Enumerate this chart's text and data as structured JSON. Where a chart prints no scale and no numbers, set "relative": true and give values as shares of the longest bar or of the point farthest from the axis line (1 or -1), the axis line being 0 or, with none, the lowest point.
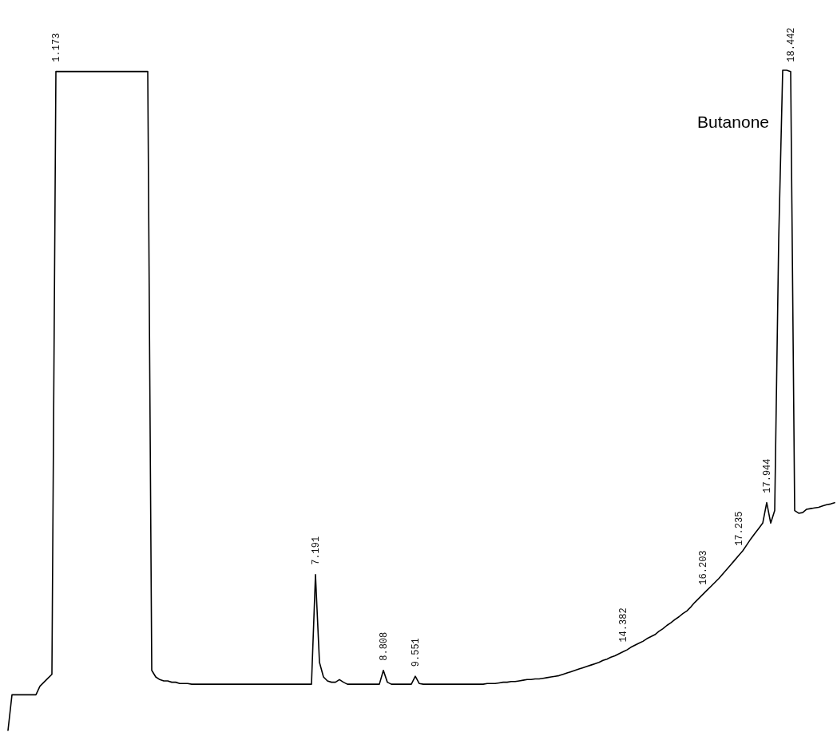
{
  "chart_data": {
    "type": "line",
    "relative": true,
    "annotations": [
      "Butanone"
    ],
    "categories": [
      null,
      null,
      null,
      null,
      null,
      null,
      null,
      null,
      null,
      null,
      null,
      null,
      "1.173",
      null,
      null,
      null,
      null,
      null,
      null,
      null,
      null,
      null,
      null,
      null,
      null,
      null,
      null,
      null,
      null,
      null,
      null,
      null,
      null,
      null,
      null,
      null,
      null,
      null,
      null,
      null,
      null,
      null,
      null,
      null,
      null,
      null,
      null,
      null,
      null,
      null,
      null,
      null,
      null,
      null,
      null,
      null,
      null,
      null,
      null,
      null,
      null,
      null,
      null,
      null,
      null,
      null,
      null,
      null,
      null,
      null,
      null,
      null,
      null,
      null,
      null,
      null,
      null,
      "7.191",
      null,
      null,
      null,
      null,
      null,
      null,
      null,
      null,
      null,
      null,
      null,
      null,
      null,
      null,
      null,
      null,
      "8.808",
      null,
      null,
      null,
      null,
      null,
      null,
      null,
      "9.551",
      null,
      null,
      null,
      null,
      null,
      null,
      null,
      null,
      null,
      null,
      null,
      null,
      null,
      null,
      null,
      null,
      null,
      null,
      null,
      null,
      null,
      null,
      null,
      null,
      null,
      null,
      null,
      null,
      null,
      null,
      null,
      null,
      null,
      null,
      null,
      null,
      null,
      null,
      null,
      null,
      null,
      null,
      null,
      null,
      null,
      null,
      null,
      null,
      null,
      null,
      null,
      "14.382",
      null,
      null,
      null,
      null,
      null,
      null,
      null,
      null,
      null,
      null,
      null,
      null,
      null,
      null,
      null,
      null,
      null,
      null,
      null,
      "16.203",
      null,
      null,
      null,
      null,
      null,
      null,
      null,
      null,
      "17.235",
      null,
      null,
      null,
      null,
      null,
      null,
      "17.944",
      null,
      null,
      null,
      null,
      null,
      "18.442",
      null,
      null,
      null,
      null,
      null,
      null,
      null,
      null,
      null,
      null,
      null
    ],
    "series": [
      {
        "color": "#000000",
        "values": [
          0,
          0.054,
          0.054,
          0.054,
          0.054,
          0.054,
          0.054,
          0.054,
          0.067,
          0.073,
          0.079,
          0.085,
          0.998,
          0.998,
          0.998,
          0.998,
          0.998,
          0.998,
          0.998,
          0.998,
          0.998,
          0.998,
          0.998,
          0.998,
          0.998,
          0.998,
          0.998,
          0.998,
          0.998,
          0.998,
          0.998,
          0.998,
          0.998,
          0.998,
          0.998,
          0.998,
          0.091,
          0.081,
          0.077,
          0.075,
          0.075,
          0.073,
          0.073,
          0.071,
          0.071,
          0.071,
          0.07,
          0.07,
          0.07,
          0.07,
          0.07,
          0.07,
          0.07,
          0.07,
          0.07,
          0.07,
          0.07,
          0.07,
          0.07,
          0.07,
          0.07,
          0.07,
          0.07,
          0.07,
          0.07,
          0.07,
          0.07,
          0.07,
          0.07,
          0.07,
          0.07,
          0.07,
          0.07,
          0.07,
          0.07,
          0.07,
          0.07,
          0.236,
          0.103,
          0.081,
          0.075,
          0.073,
          0.073,
          0.077,
          0.073,
          0.07,
          0.07,
          0.07,
          0.07,
          0.07,
          0.07,
          0.07,
          0.07,
          0.07,
          0.091,
          0.073,
          0.07,
          0.07,
          0.07,
          0.07,
          0.07,
          0.07,
          0.082,
          0.071,
          0.07,
          0.07,
          0.07,
          0.07,
          0.07,
          0.07,
          0.07,
          0.07,
          0.07,
          0.07,
          0.07,
          0.07,
          0.07,
          0.07,
          0.07,
          0.07,
          0.071,
          0.071,
          0.071,
          0.072,
          0.073,
          0.073,
          0.074,
          0.074,
          0.075,
          0.076,
          0.077,
          0.077,
          0.078,
          0.078,
          0.079,
          0.08,
          0.081,
          0.082,
          0.083,
          0.085,
          0.087,
          0.089,
          0.091,
          0.093,
          0.095,
          0.097,
          0.099,
          0.101,
          0.103,
          0.106,
          0.108,
          0.111,
          0.113,
          0.116,
          0.119,
          0.122,
          0.126,
          0.129,
          0.132,
          0.135,
          0.139,
          0.142,
          0.145,
          0.15,
          0.154,
          0.159,
          0.163,
          0.168,
          0.172,
          0.177,
          0.181,
          0.187,
          0.194,
          0.2,
          0.206,
          0.212,
          0.218,
          0.224,
          0.23,
          0.237,
          0.244,
          0.251,
          0.258,
          0.265,
          0.272,
          0.281,
          0.29,
          0.298,
          0.306,
          0.314,
          0.345,
          0.314,
          0.333,
          0.744,
          1,
          1,
          0.998,
          0.333,
          0.329,
          0.33,
          0.335,
          0.336,
          0.337,
          0.338,
          0.34,
          0.342,
          0.343,
          0.345
        ]
      }
    ]
  }
}
